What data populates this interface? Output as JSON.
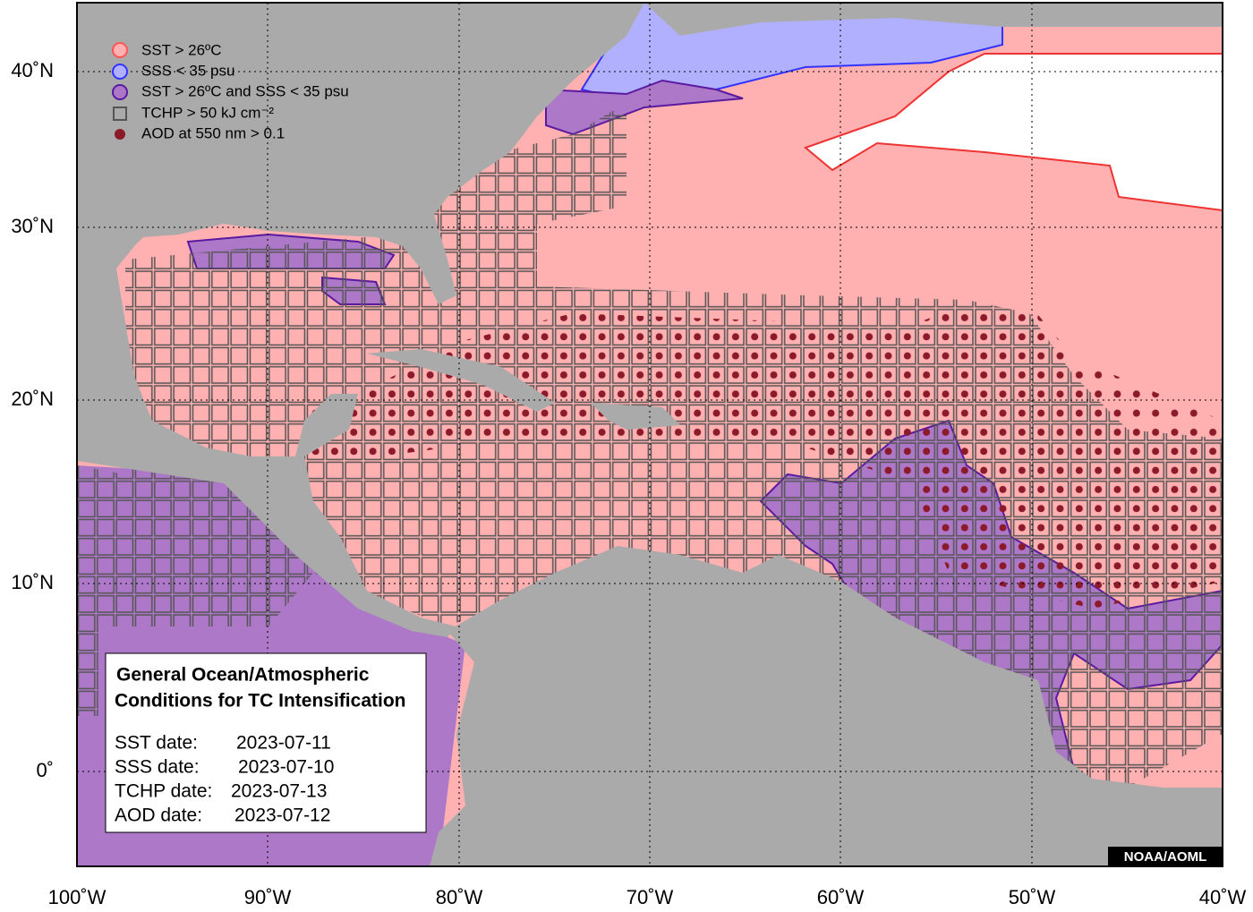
{
  "legend": [
    "SST > 26ºC",
    "SSS < 35 psu",
    "SST > 26ºC and SSS < 35 psu",
    "TCHP > 50 kJ cm⁻²",
    "AOD at 550 nm > 0.1"
  ],
  "info": {
    "title": [
      "General Ocean/Atmospheric",
      "Conditions for TC Intensification"
    ],
    "dates": [
      {
        "label": "SST date:",
        "date": "2023-07-11"
      },
      {
        "label": "SSS date:",
        "date": "2023-07-10"
      },
      {
        "label": "TCHP date:",
        "date": "2023-07-13"
      },
      {
        "label": "AOD date:",
        "date": "2023-07-12"
      }
    ]
  },
  "credit": "NOAA/AOML",
  "lon_labels": [
    "100˚W",
    "90˚W",
    "80˚W",
    "70˚W",
    "60˚W",
    "50˚W",
    "40˚W"
  ],
  "lat_labels": [
    "40˚N",
    "30˚N",
    "20˚N",
    "10˚N",
    "0˚"
  ]
}
